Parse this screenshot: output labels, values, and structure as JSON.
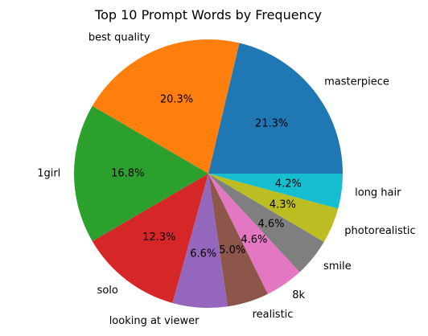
{
  "chart_data": {
    "type": "pie",
    "title": "Top 10 Prompt Words by Frequency",
    "slices": [
      {
        "label": "masterpiece",
        "value": 21.3,
        "pct_label": "21.3%",
        "color": "#1f77b4"
      },
      {
        "label": "best quality",
        "value": 20.3,
        "pct_label": "20.3%",
        "color": "#ff7f0e"
      },
      {
        "label": "1girl",
        "value": 16.8,
        "pct_label": "16.8%",
        "color": "#2ca02c"
      },
      {
        "label": "solo",
        "value": 12.3,
        "pct_label": "12.3%",
        "color": "#d62728"
      },
      {
        "label": "looking at viewer",
        "value": 6.6,
        "pct_label": "6.6%",
        "color": "#9467bd"
      },
      {
        "label": "realistic",
        "value": 5.0,
        "pct_label": "5.0%",
        "color": "#8c564b"
      },
      {
        "label": "8k",
        "value": 4.6,
        "pct_label": "4.6%",
        "color": "#e377c2"
      },
      {
        "label": "smile",
        "value": 4.6,
        "pct_label": "4.6%",
        "color": "#7f7f7f"
      },
      {
        "label": "photorealistic",
        "value": 4.3,
        "pct_label": "4.3%",
        "color": "#bcbd22"
      },
      {
        "label": "long hair",
        "value": 4.2,
        "pct_label": "4.2%",
        "color": "#17becf"
      }
    ]
  }
}
